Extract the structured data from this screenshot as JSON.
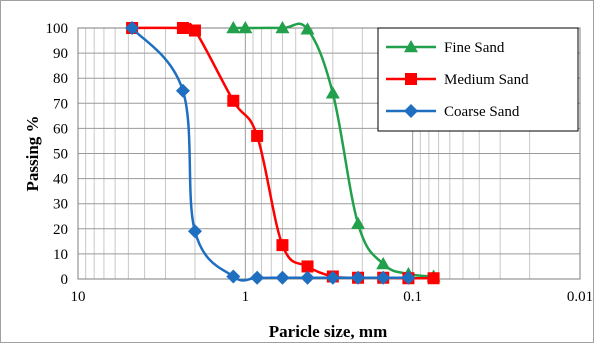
{
  "chart_data": {
    "type": "line",
    "title": "",
    "xlabel": "Paricle size, mm",
    "ylabel": "Passing %",
    "x_scale": "log",
    "x_reversed": true,
    "xlim": [
      10,
      0.01
    ],
    "ylim": [
      0,
      100
    ],
    "x_ticks": [
      "10",
      "1",
      "0.1",
      "0.01"
    ],
    "y_ticks": [
      "0",
      "10",
      "20",
      "30",
      "40",
      "50",
      "60",
      "70",
      "80",
      "90",
      "100"
    ],
    "grid": true,
    "legend_position": "top-right",
    "series": [
      {
        "name": "Fine Sand",
        "color": "#22a04b",
        "marker": "triangle",
        "points": [
          {
            "x": 1.18,
            "y": 100
          },
          {
            "x": 1.0,
            "y": 100
          },
          {
            "x": 0.6,
            "y": 100
          },
          {
            "x": 0.425,
            "y": 99.5
          },
          {
            "x": 0.3,
            "y": 74
          },
          {
            "x": 0.212,
            "y": 22
          },
          {
            "x": 0.15,
            "y": 6
          },
          {
            "x": 0.106,
            "y": 2
          },
          {
            "x": 0.075,
            "y": 1
          }
        ]
      },
      {
        "name": "Medium Sand",
        "color": "#ff0000",
        "marker": "square",
        "points": [
          {
            "x": 4.75,
            "y": 100
          },
          {
            "x": 2.36,
            "y": 100
          },
          {
            "x": 2.0,
            "y": 99
          },
          {
            "x": 1.18,
            "y": 71
          },
          {
            "x": 0.85,
            "y": 57
          },
          {
            "x": 0.6,
            "y": 13.5
          },
          {
            "x": 0.425,
            "y": 5
          },
          {
            "x": 0.3,
            "y": 1
          },
          {
            "x": 0.212,
            "y": 0.5
          },
          {
            "x": 0.15,
            "y": 0.5
          },
          {
            "x": 0.106,
            "y": 0.3
          },
          {
            "x": 0.075,
            "y": 0.3
          }
        ]
      },
      {
        "name": "Coarse Sand",
        "color": "#1f6fc1",
        "marker": "diamond",
        "points": [
          {
            "x": 4.75,
            "y": 100
          },
          {
            "x": 2.36,
            "y": 75
          },
          {
            "x": 2.0,
            "y": 19
          },
          {
            "x": 1.18,
            "y": 1
          },
          {
            "x": 0.85,
            "y": 0.5
          },
          {
            "x": 0.6,
            "y": 0.5
          },
          {
            "x": 0.425,
            "y": 0.5
          },
          {
            "x": 0.3,
            "y": 0.5
          },
          {
            "x": 0.212,
            "y": 0.5
          },
          {
            "x": 0.15,
            "y": 0.5
          },
          {
            "x": 0.106,
            "y": 0.5
          }
        ]
      }
    ]
  }
}
